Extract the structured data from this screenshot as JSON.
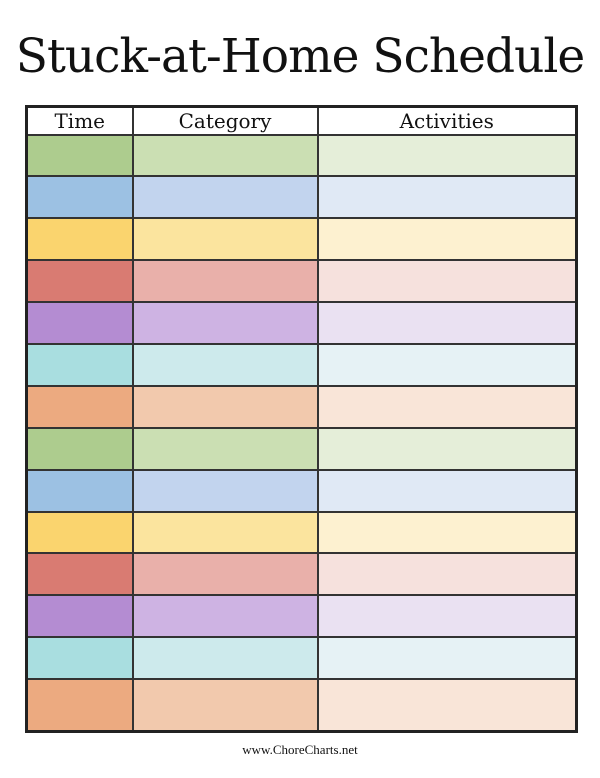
{
  "page": {
    "title": "Stuck-at-Home Schedule",
    "footer": "www.ChoreCharts.net"
  },
  "table": {
    "headers": [
      "Time",
      "Category",
      "Activities"
    ],
    "row_count": 14,
    "cells_empty": true,
    "row_colors": [
      {
        "name": "green",
        "time": "#ADCC8E",
        "category": "#CBDFB3",
        "activities": "#E5EED9"
      },
      {
        "name": "blue",
        "time": "#9CC1E3",
        "category": "#C2D4EE",
        "activities": "#E0E9F5"
      },
      {
        "name": "yellow",
        "time": "#FAD46E",
        "category": "#FBE49E",
        "activities": "#FDF1D0"
      },
      {
        "name": "red",
        "time": "#D97B72",
        "category": "#E9B0AA",
        "activities": "#F6E1DD"
      },
      {
        "name": "purple",
        "time": "#B48CD2",
        "category": "#CEB3E3",
        "activities": "#EAE1F2"
      },
      {
        "name": "teal",
        "time": "#A9DEE0",
        "category": "#CDEAEC",
        "activities": "#E6F2F5"
      },
      {
        "name": "orange",
        "time": "#ECAA80",
        "category": "#F2C9AD",
        "activities": "#F9E5D8"
      }
    ]
  }
}
